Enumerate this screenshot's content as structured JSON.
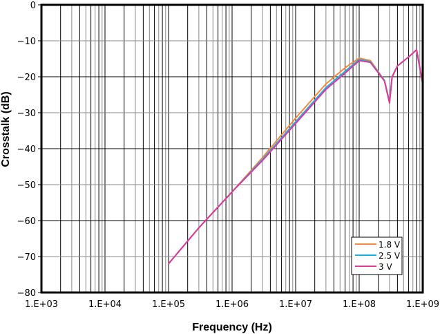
{
  "chart_data": {
    "type": "line",
    "title": "",
    "xlabel": "Frequency (Hz)",
    "ylabel": "Crosstalk (dB)",
    "xscale": "log",
    "xlim": [
      1000,
      1000000000
    ],
    "ylim": [
      -80,
      0
    ],
    "grid": true,
    "legend_position": "lower right",
    "x_tick_labels": [
      "1.E+03",
      "1.E+04",
      "1.E+05",
      "1.E+06",
      "1.E+07",
      "1.E+08",
      "1.E+09"
    ],
    "y_tick_labels": [
      "0",
      "−10",
      "−20",
      "−30",
      "−40",
      "−50",
      "−60",
      "−70",
      "−80"
    ],
    "x": [
      100000,
      300000,
      1000000,
      3000000,
      10000000,
      30000000,
      60000000,
      100000000,
      150000000,
      250000000,
      300000000,
      330000000,
      400000000,
      600000000,
      800000000,
      1000000000
    ],
    "series": [
      {
        "name": "1.8 V",
        "color": "#f28a3c",
        "values": [
          -72,
          -62,
          -52,
          -42.5,
          -31.5,
          -22,
          -17.5,
          -14.8,
          -15.5,
          -21,
          -27,
          -20,
          -17,
          -14.5,
          -12.5,
          -22
        ]
      },
      {
        "name": "2.5 V",
        "color": "#1ab2e6",
        "values": [
          -72,
          -62,
          -52,
          -43,
          -32.5,
          -23,
          -18.5,
          -15.2,
          -15.8,
          -21,
          -27,
          -20,
          -17,
          -14.5,
          -12.5,
          -22
        ]
      },
      {
        "name": "3 V",
        "color": "#e0389a",
        "values": [
          -72,
          -62,
          -52,
          -43.3,
          -33,
          -23.5,
          -19,
          -15.5,
          -16,
          -21.2,
          -27.3,
          -20,
          -17,
          -14.5,
          -12.5,
          -22
        ]
      }
    ]
  }
}
